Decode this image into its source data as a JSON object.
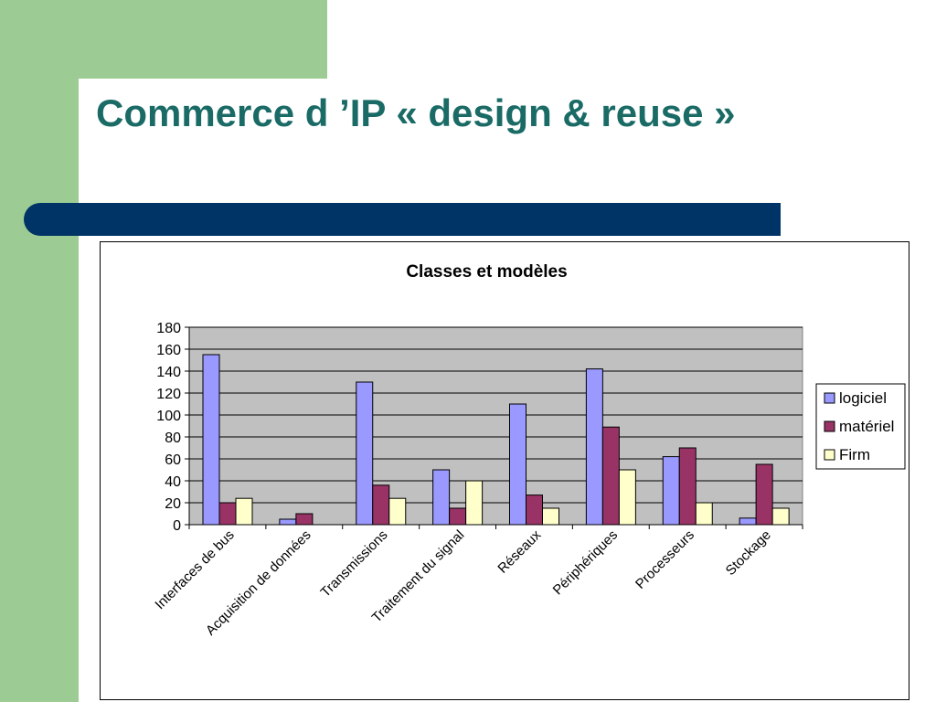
{
  "slide": {
    "title": "Commerce d ’IP « design & reuse »"
  },
  "colors": {
    "accent_green": "#9ccc93",
    "title_teal": "#1a6b66",
    "bar_navy": "#003366",
    "plot_bg": "#c0c0c0"
  },
  "chart_data": {
    "type": "bar",
    "title": "Classes et modèles",
    "xlabel": "",
    "ylabel": "",
    "categories": [
      "Interfaces de bus",
      "Acquisition de données",
      "Transmissions",
      "Traitement du signal",
      "Réseaux",
      "Périphériques",
      "Processeurs",
      "Stockage"
    ],
    "series": [
      {
        "name": "logiciel",
        "color": "#9999ff",
        "values": [
          155,
          5,
          130,
          50,
          110,
          142,
          62,
          6
        ]
      },
      {
        "name": "matériel",
        "color": "#993366",
        "values": [
          20,
          10,
          36,
          15,
          27,
          89,
          70,
          55
        ]
      },
      {
        "name": "Firm",
        "color": "#ffffcc",
        "values": [
          24,
          0,
          24,
          40,
          15,
          50,
          20,
          15
        ]
      }
    ],
    "ylim": [
      0,
      180
    ],
    "yticks": [
      0,
      20,
      40,
      60,
      80,
      100,
      120,
      140,
      160,
      180
    ],
    "grid": true,
    "legend_position": "right"
  }
}
